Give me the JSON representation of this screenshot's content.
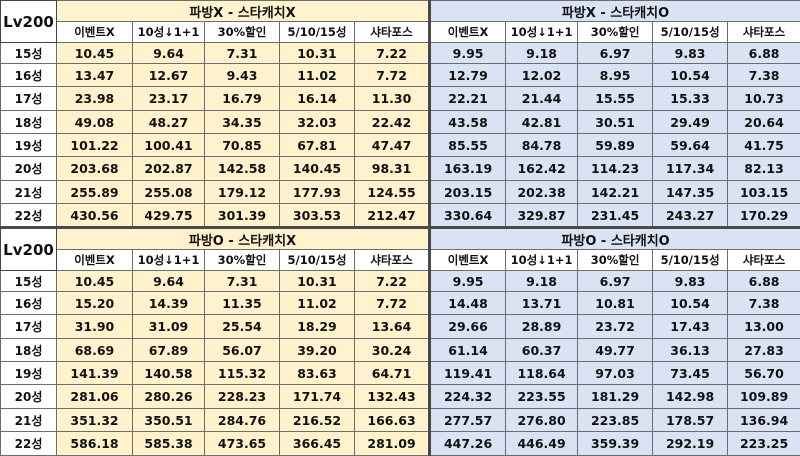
{
  "colors": {
    "no_catch_fill": "#fff2cc",
    "catch_fill": "#dae3f3"
  },
  "level_label": "Lv200",
  "col_headers": [
    "이벤트X",
    "10성↓1+1",
    "30%할인",
    "5/10/15성",
    "샤타포스"
  ],
  "sections": [
    {
      "level_label": "Lv200",
      "groups": [
        "파방X - 스타캐치X",
        "파방X - 스타캐치O"
      ],
      "col_headers_left": [
        "이벤트X",
        "10성↓1+1",
        "30%할인",
        "5/10/15성",
        "샤타포스"
      ],
      "col_headers_right": [
        "이벤트X",
        "10성↓1+1",
        "30%할인",
        "5/10/15성",
        "샤타포스"
      ],
      "rows": [
        {
          "star": "15성",
          "left": [
            "10.45",
            "9.64",
            "7.31",
            "10.31",
            "7.22"
          ],
          "right": [
            "9.95",
            "9.18",
            "6.97",
            "9.83",
            "6.88"
          ]
        },
        {
          "star": "16성",
          "left": [
            "13.47",
            "12.67",
            "9.43",
            "11.02",
            "7.72"
          ],
          "right": [
            "12.79",
            "12.02",
            "8.95",
            "10.54",
            "7.38"
          ]
        },
        {
          "star": "17성",
          "left": [
            "23.98",
            "23.17",
            "16.79",
            "16.14",
            "11.30"
          ],
          "right": [
            "22.21",
            "21.44",
            "15.55",
            "15.33",
            "10.73"
          ]
        },
        {
          "star": "18성",
          "left": [
            "49.08",
            "48.27",
            "34.35",
            "32.03",
            "22.42"
          ],
          "right": [
            "43.58",
            "42.81",
            "30.51",
            "29.49",
            "20.64"
          ]
        },
        {
          "star": "19성",
          "left": [
            "101.22",
            "100.41",
            "70.85",
            "67.81",
            "47.47"
          ],
          "right": [
            "85.55",
            "84.78",
            "59.89",
            "59.64",
            "41.75"
          ]
        },
        {
          "star": "20성",
          "left": [
            "203.68",
            "202.87",
            "142.58",
            "140.45",
            "98.31"
          ],
          "right": [
            "163.19",
            "162.42",
            "114.23",
            "117.34",
            "82.13"
          ]
        },
        {
          "star": "21성",
          "left": [
            "255.89",
            "255.08",
            "179.12",
            "177.93",
            "124.55"
          ],
          "right": [
            "203.15",
            "202.38",
            "142.21",
            "147.35",
            "103.15"
          ]
        },
        {
          "star": "22성",
          "left": [
            "430.56",
            "429.75",
            "301.39",
            "303.53",
            "212.47"
          ],
          "right": [
            "330.64",
            "329.87",
            "231.45",
            "243.27",
            "170.29"
          ]
        }
      ]
    },
    {
      "level_label": "Lv200",
      "groups": [
        "파방O - 스타캐치X",
        "파방O - 스타캐치O"
      ],
      "col_headers_left": [
        "이벤트X",
        "10성↓1+1",
        "30%할인",
        "5/10/15성",
        "샤타포스"
      ],
      "col_headers_right": [
        "이벤트X",
        "10성↓1+1",
        "30%할인",
        "5/10/15성",
        "샤타포스"
      ],
      "rows": [
        {
          "star": "15성",
          "left": [
            "10.45",
            "9.64",
            "7.31",
            "10.31",
            "7.22"
          ],
          "right": [
            "9.95",
            "9.18",
            "6.97",
            "9.83",
            "6.88"
          ]
        },
        {
          "star": "16성",
          "left": [
            "15.20",
            "14.39",
            "11.35",
            "11.02",
            "7.72"
          ],
          "right": [
            "14.48",
            "13.71",
            "10.81",
            "10.54",
            "7.38"
          ]
        },
        {
          "star": "17성",
          "left": [
            "31.90",
            "31.09",
            "25.54",
            "18.29",
            "13.64"
          ],
          "right": [
            "29.66",
            "28.89",
            "23.72",
            "17.43",
            "13.00"
          ]
        },
        {
          "star": "18성",
          "left": [
            "68.69",
            "67.89",
            "56.07",
            "39.20",
            "30.24"
          ],
          "right": [
            "61.14",
            "60.37",
            "49.77",
            "36.13",
            "27.83"
          ]
        },
        {
          "star": "19성",
          "left": [
            "141.39",
            "140.58",
            "115.32",
            "83.63",
            "64.71"
          ],
          "right": [
            "119.41",
            "118.64",
            "97.03",
            "73.45",
            "56.70"
          ]
        },
        {
          "star": "20성",
          "left": [
            "281.06",
            "280.26",
            "228.23",
            "171.74",
            "132.43"
          ],
          "right": [
            "224.32",
            "223.55",
            "181.29",
            "142.98",
            "109.89"
          ]
        },
        {
          "star": "21성",
          "left": [
            "351.32",
            "350.51",
            "284.76",
            "216.52",
            "166.63"
          ],
          "right": [
            "277.57",
            "276.80",
            "223.85",
            "178.57",
            "136.94"
          ]
        },
        {
          "star": "22성",
          "left": [
            "586.18",
            "585.38",
            "473.65",
            "366.45",
            "281.09"
          ],
          "right": [
            "447.26",
            "446.49",
            "359.39",
            "292.19",
            "223.25"
          ]
        }
      ]
    }
  ]
}
